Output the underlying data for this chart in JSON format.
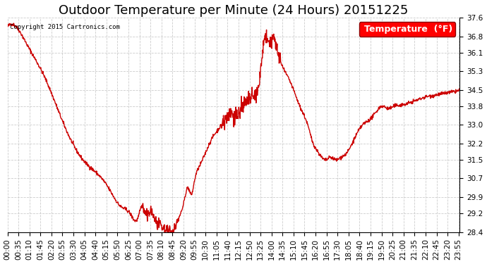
{
  "title": "Outdoor Temperature per Minute (24 Hours) 20151225",
  "copyright_text": "Copyright 2015 Cartronics.com",
  "legend_label": "Temperature  (°F)",
  "line_color": "#cc0000",
  "background_color": "#ffffff",
  "grid_color": "#cccccc",
  "ylim": [
    28.4,
    37.6
  ],
  "yticks": [
    28.4,
    29.2,
    29.9,
    30.7,
    31.5,
    32.2,
    33.0,
    33.8,
    34.5,
    35.3,
    36.1,
    36.8,
    37.6
  ],
  "xtick_labels": [
    "00:00",
    "00:35",
    "01:10",
    "01:45",
    "02:20",
    "02:55",
    "03:30",
    "04:05",
    "04:40",
    "05:15",
    "05:50",
    "06:25",
    "07:00",
    "07:35",
    "08:10",
    "08:45",
    "09:20",
    "09:55",
    "10:30",
    "11:05",
    "11:40",
    "12:15",
    "12:50",
    "13:25",
    "14:00",
    "14:35",
    "15:10",
    "15:45",
    "16:20",
    "16:55",
    "17:30",
    "18:05",
    "18:40",
    "19:15",
    "19:50",
    "20:25",
    "21:00",
    "21:35",
    "22:10",
    "22:45",
    "23:20",
    "23:55"
  ],
  "title_fontsize": 13,
  "tick_fontsize": 7.5,
  "legend_fontsize": 9,
  "line_width": 1.0,
  "keypoints_x": [
    0,
    20,
    60,
    120,
    180,
    240,
    300,
    330,
    360,
    390,
    415,
    430,
    440,
    455,
    470,
    490,
    510,
    518,
    530,
    545,
    560,
    575,
    585,
    595,
    610,
    630,
    650,
    670,
    690,
    710,
    730,
    750,
    770,
    790,
    805,
    815,
    825,
    835,
    845,
    855,
    865,
    875,
    890,
    910,
    930,
    955,
    970,
    985,
    1000,
    1015,
    1025,
    1045,
    1060,
    1080,
    1100,
    1115,
    1130,
    1150,
    1170,
    1190,
    1210,
    1230,
    1250,
    1270,
    1290,
    1310,
    1330,
    1350,
    1370,
    1390,
    1410,
    1430,
    1439
  ],
  "keypoints_y": [
    37.2,
    37.3,
    36.5,
    35.0,
    33.0,
    31.5,
    30.7,
    30.1,
    29.5,
    29.2,
    29.0,
    29.5,
    29.1,
    29.3,
    28.9,
    28.6,
    28.45,
    28.42,
    28.5,
    29.0,
    29.6,
    30.3,
    30.0,
    30.6,
    31.2,
    31.8,
    32.4,
    32.8,
    33.2,
    33.5,
    33.4,
    33.8,
    34.1,
    34.3,
    35.2,
    36.5,
    36.7,
    36.4,
    36.8,
    36.3,
    35.9,
    35.5,
    35.1,
    34.5,
    33.8,
    33.0,
    32.3,
    31.9,
    31.6,
    31.5,
    31.6,
    31.5,
    31.6,
    31.8,
    32.3,
    32.7,
    33.0,
    33.2,
    33.5,
    33.8,
    33.7,
    33.8,
    33.85,
    33.9,
    34.0,
    34.1,
    34.2,
    34.25,
    34.3,
    34.35,
    34.4,
    34.45,
    34.5
  ]
}
